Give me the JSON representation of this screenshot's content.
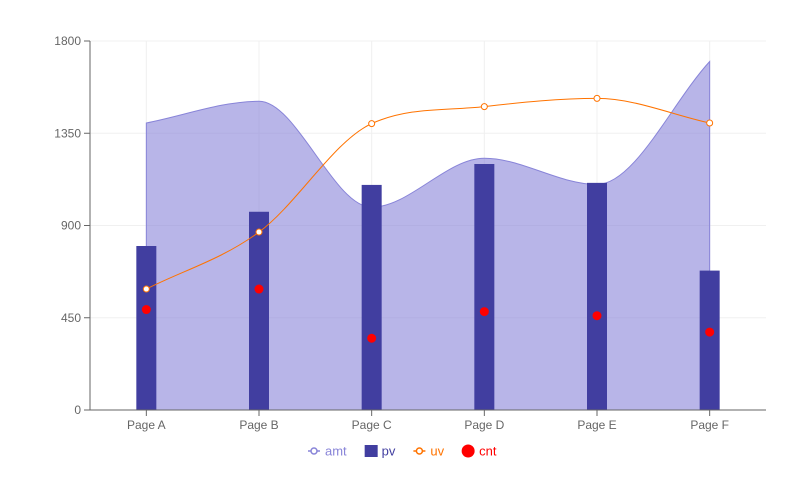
{
  "chart_data": {
    "type": "composed",
    "categories": [
      "Page A",
      "Page B",
      "Page C",
      "Page D",
      "Page E",
      "Page F"
    ],
    "ylim": [
      0,
      1800
    ],
    "yticks": [
      0,
      450,
      900,
      1350,
      1800
    ],
    "grid": true,
    "legend_position": "bottom",
    "series": [
      {
        "name": "amt",
        "kind": "area",
        "color": "#8884d8",
        "values": [
          1400,
          1506,
          989,
          1228,
          1100,
          1700
        ]
      },
      {
        "name": "pv",
        "kind": "bar",
        "color": "#413ea0",
        "values": [
          800,
          967,
          1098,
          1200,
          1108,
          680
        ]
      },
      {
        "name": "uv",
        "kind": "line",
        "color": "#ff7300",
        "values": [
          590,
          868,
          1397,
          1480,
          1520,
          1400
        ]
      },
      {
        "name": "cnt",
        "kind": "scatter",
        "color": "#ff0000",
        "values": [
          490,
          590,
          350,
          480,
          460,
          380
        ]
      }
    ]
  }
}
